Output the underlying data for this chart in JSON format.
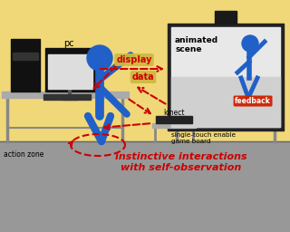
{
  "bg_wall_color": "#f0d878",
  "bg_floor_color": "#989898",
  "figure_color": "#2060c8",
  "pc_color": "#111111",
  "screen_bg": "#dcdcdc",
  "screen_inner": "#e8e8e8",
  "table_color": "#aaaaaa",
  "table_dark": "#888888",
  "arrow_color": "#cc0000",
  "label_bg_display": "#d0b840",
  "label_bg_feedback": "#cc2200",
  "label_bg_data": "#d0b840",
  "text_black": "#000000",
  "text_red": "#cc0000",
  "text_white": "#ffffff",
  "labels": {
    "pc": "pc",
    "display": "display",
    "feedback": "feedback",
    "data": "data",
    "kinect": "kinect",
    "animated_scene": "animated\nscene",
    "single_touch": "single-touch enable\ngame board",
    "action_zone": "action zone",
    "instinct": "instinctive interactions\nwith self-observation"
  }
}
